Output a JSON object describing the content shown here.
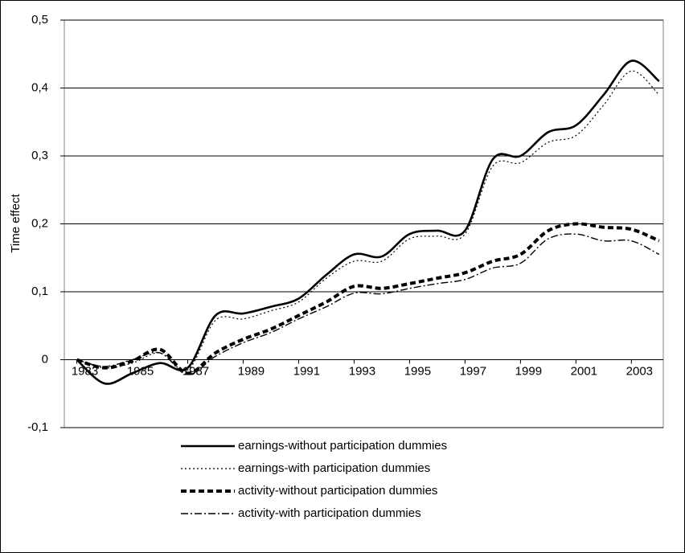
{
  "chart_data": {
    "type": "line",
    "y_label": "Time effect",
    "x": [
      1983,
      1984,
      1985,
      1986,
      1987,
      1988,
      1989,
      1990,
      1991,
      1992,
      1993,
      1994,
      1995,
      1996,
      1997,
      1998,
      1999,
      2000,
      2001,
      2002,
      2003,
      2004
    ],
    "xlim": [
      1982.55,
      2004.15
    ],
    "xticks": [
      1983,
      1985,
      1987,
      1989,
      1991,
      1993,
      1995,
      1997,
      1999,
      2001,
      2003
    ],
    "ylim": [
      -0.1,
      0.5
    ],
    "yticks": [
      {
        "value": -0.1,
        "label": "-0,1"
      },
      0,
      {
        "value": 0.1,
        "label": "0,1"
      },
      {
        "value": 0.2,
        "label": "0,2"
      },
      {
        "value": 0.3,
        "label": "0,3"
      },
      {
        "value": 0.4,
        "label": "0,4"
      },
      {
        "value": 0.5,
        "label": "0,5"
      }
    ],
    "grid": true,
    "legend": "bottom",
    "series": [
      {
        "name": "earnings-without participation dummies",
        "color": "#000000",
        "dash": "solid",
        "values": [
          0,
          -0.035,
          -0.02,
          -0.005,
          -0.012,
          0.065,
          0.068,
          0.078,
          0.09,
          0.125,
          0.155,
          0.152,
          0.185,
          0.19,
          0.19,
          0.295,
          0.3,
          0.335,
          0.345,
          0.39,
          0.44,
          0.41
        ]
      },
      {
        "name": "earnings-with participation dummies",
        "color": "#000000",
        "dash": "dotted",
        "values": [
          0,
          -0.012,
          -0.005,
          0.01,
          -0.015,
          0.058,
          0.06,
          0.072,
          0.085,
          0.12,
          0.145,
          0.145,
          0.178,
          0.182,
          0.185,
          0.285,
          0.29,
          0.32,
          0.33,
          0.375,
          0.425,
          0.39
        ]
      },
      {
        "name": "activity-without participation dummies",
        "color": "#000000",
        "dash": "dashed",
        "values": [
          0,
          -0.012,
          -0.002,
          0.015,
          -0.02,
          0.01,
          0.03,
          0.045,
          0.065,
          0.085,
          0.108,
          0.105,
          0.112,
          0.12,
          0.128,
          0.145,
          0.155,
          0.19,
          0.2,
          0.195,
          0.192,
          0.175
        ]
      },
      {
        "name": "activity-with participation dummies",
        "color": "#000000",
        "dash": "dash-dot",
        "values": [
          0,
          -0.01,
          0,
          0.01,
          -0.022,
          0.005,
          0.025,
          0.04,
          0.06,
          0.078,
          0.098,
          0.097,
          0.105,
          0.112,
          0.118,
          0.135,
          0.142,
          0.178,
          0.185,
          0.175,
          0.175,
          0.155
        ]
      }
    ]
  }
}
